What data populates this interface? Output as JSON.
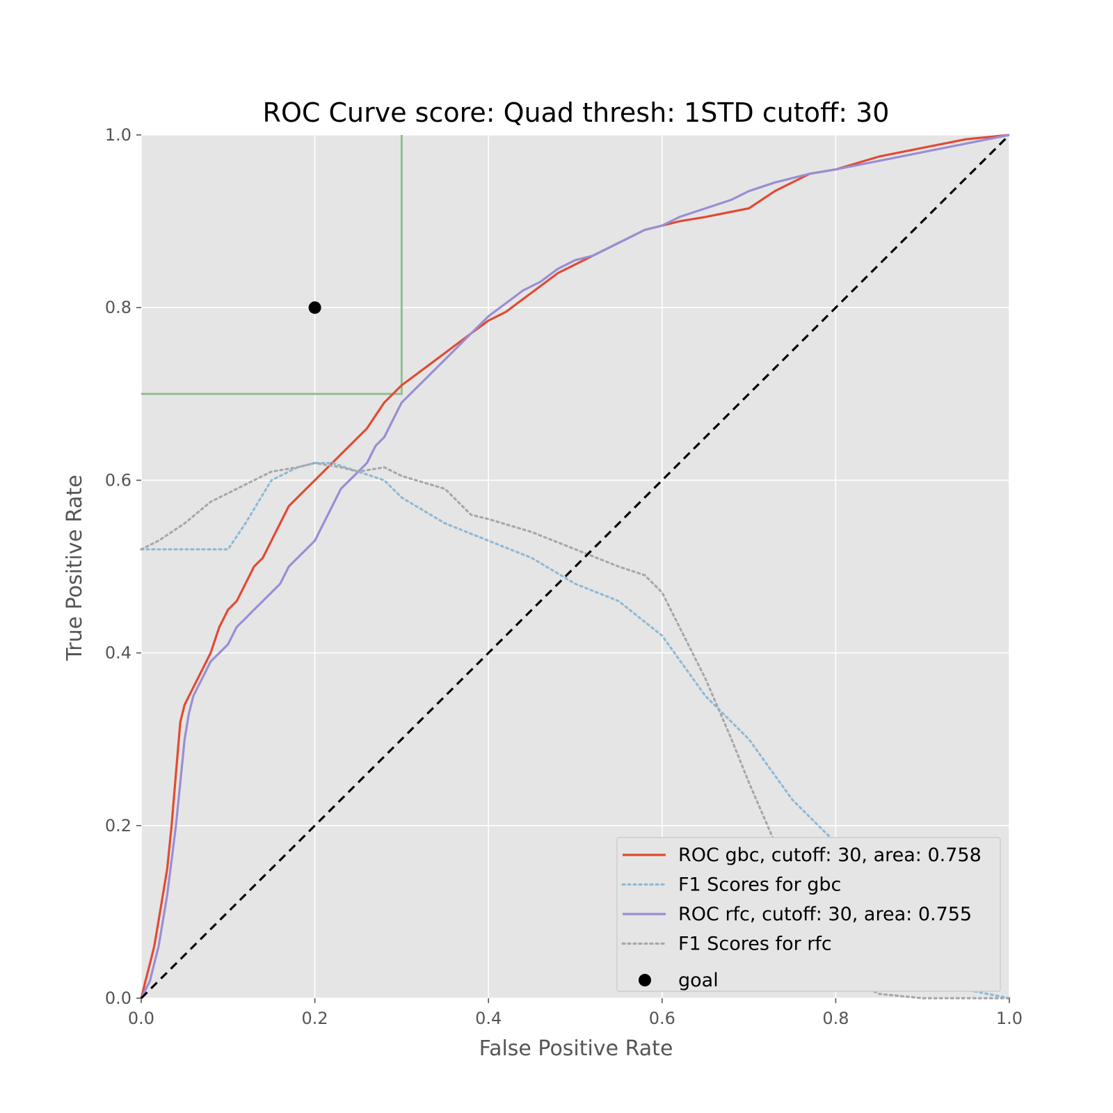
{
  "chart_data": {
    "type": "line",
    "title": "ROC Curve score: Quad thresh: 1STD cutoff: 30",
    "xlabel": "False Positive Rate",
    "ylabel": "True Positive Rate",
    "xlim": [
      0,
      1
    ],
    "ylim": [
      0,
      1
    ],
    "xticks": [
      "0.0",
      "0.2",
      "0.4",
      "0.6",
      "0.8",
      "1.0"
    ],
    "yticks": [
      "0.0",
      "0.2",
      "0.4",
      "0.6",
      "0.8",
      "1.0"
    ],
    "grid": true,
    "legend_position": "lower-right",
    "colors": {
      "background": "#e5e5e5",
      "grid": "#ffffff",
      "gbc": "#e24a33",
      "gbc_f1": "#8ebad9",
      "rfc": "#988ed5",
      "rfc_f1": "#a8a8a8",
      "goal": "#000000",
      "diagonal": "#000000",
      "threshold": "#8fc08f"
    },
    "series": [
      {
        "name": "ROC gbc, cutoff: 30, area: 0.758",
        "style": "solid",
        "color": "#e24a33",
        "x": [
          0,
          0.005,
          0.01,
          0.015,
          0.02,
          0.025,
          0.03,
          0.035,
          0.04,
          0.045,
          0.05,
          0.055,
          0.06,
          0.065,
          0.07,
          0.08,
          0.09,
          0.095,
          0.1,
          0.11,
          0.12,
          0.13,
          0.14,
          0.15,
          0.155,
          0.16,
          0.17,
          0.18,
          0.19,
          0.2,
          0.21,
          0.215,
          0.22,
          0.24,
          0.26,
          0.28,
          0.3,
          0.32,
          0.34,
          0.36,
          0.38,
          0.4,
          0.42,
          0.44,
          0.46,
          0.48,
          0.5,
          0.52,
          0.54,
          0.56,
          0.58,
          0.6,
          0.62,
          0.65,
          0.7,
          0.73,
          0.77,
          0.8,
          0.85,
          0.9,
          0.95,
          1.0
        ],
        "y": [
          0,
          0.02,
          0.04,
          0.06,
          0.09,
          0.12,
          0.15,
          0.2,
          0.26,
          0.32,
          0.34,
          0.35,
          0.36,
          0.37,
          0.38,
          0.4,
          0.43,
          0.44,
          0.45,
          0.46,
          0.48,
          0.5,
          0.51,
          0.53,
          0.54,
          0.55,
          0.57,
          0.58,
          0.59,
          0.6,
          0.61,
          0.615,
          0.62,
          0.64,
          0.66,
          0.69,
          0.71,
          0.725,
          0.74,
          0.755,
          0.77,
          0.785,
          0.795,
          0.81,
          0.825,
          0.84,
          0.85,
          0.86,
          0.87,
          0.88,
          0.89,
          0.895,
          0.9,
          0.905,
          0.915,
          0.935,
          0.955,
          0.96,
          0.975,
          0.985,
          0.995,
          1.0
        ]
      },
      {
        "name": "F1 Scores for gbc",
        "style": "dotted",
        "color": "#8ebad9",
        "x": [
          0,
          0.05,
          0.1,
          0.12,
          0.15,
          0.18,
          0.2,
          0.22,
          0.25,
          0.28,
          0.3,
          0.35,
          0.4,
          0.45,
          0.5,
          0.55,
          0.6,
          0.65,
          0.7,
          0.75,
          0.8,
          0.85,
          0.9,
          0.95,
          1.0
        ],
        "y": [
          0.52,
          0.52,
          0.52,
          0.55,
          0.6,
          0.615,
          0.62,
          0.62,
          0.61,
          0.6,
          0.58,
          0.55,
          0.53,
          0.51,
          0.48,
          0.46,
          0.42,
          0.35,
          0.3,
          0.23,
          0.18,
          0.12,
          0.06,
          0.01,
          0.0
        ]
      },
      {
        "name": "ROC rfc, cutoff: 30, area: 0.755",
        "style": "solid",
        "color": "#988ed5",
        "x": [
          0,
          0.005,
          0.01,
          0.015,
          0.02,
          0.025,
          0.03,
          0.035,
          0.04,
          0.045,
          0.05,
          0.055,
          0.06,
          0.065,
          0.07,
          0.08,
          0.09,
          0.1,
          0.11,
          0.12,
          0.13,
          0.14,
          0.15,
          0.16,
          0.17,
          0.18,
          0.19,
          0.2,
          0.21,
          0.22,
          0.23,
          0.24,
          0.25,
          0.26,
          0.27,
          0.28,
          0.29,
          0.3,
          0.32,
          0.34,
          0.36,
          0.38,
          0.4,
          0.42,
          0.44,
          0.46,
          0.48,
          0.5,
          0.52,
          0.54,
          0.56,
          0.58,
          0.6,
          0.62,
          0.65,
          0.68,
          0.7,
          0.73,
          0.77,
          0.8,
          0.85,
          0.9,
          0.95,
          1.0
        ],
        "y": [
          0,
          0.01,
          0.02,
          0.04,
          0.06,
          0.09,
          0.12,
          0.16,
          0.2,
          0.25,
          0.3,
          0.33,
          0.35,
          0.36,
          0.37,
          0.39,
          0.4,
          0.41,
          0.43,
          0.44,
          0.45,
          0.46,
          0.47,
          0.48,
          0.5,
          0.51,
          0.52,
          0.53,
          0.55,
          0.57,
          0.59,
          0.6,
          0.61,
          0.62,
          0.64,
          0.65,
          0.67,
          0.69,
          0.71,
          0.73,
          0.75,
          0.77,
          0.79,
          0.805,
          0.82,
          0.83,
          0.845,
          0.855,
          0.86,
          0.87,
          0.88,
          0.89,
          0.895,
          0.905,
          0.915,
          0.925,
          0.935,
          0.945,
          0.955,
          0.96,
          0.97,
          0.98,
          0.99,
          1.0
        ]
      },
      {
        "name": "F1 Scores for rfc",
        "style": "dotted",
        "color": "#a8a8a8",
        "x": [
          0,
          0.02,
          0.05,
          0.08,
          0.1,
          0.13,
          0.15,
          0.18,
          0.2,
          0.23,
          0.25,
          0.28,
          0.3,
          0.35,
          0.38,
          0.4,
          0.45,
          0.5,
          0.55,
          0.58,
          0.6,
          0.62,
          0.65,
          0.68,
          0.7,
          0.73,
          0.75,
          0.78,
          0.8,
          0.83,
          0.85,
          0.9,
          0.95,
          1.0
        ],
        "y": [
          0.52,
          0.53,
          0.55,
          0.575,
          0.585,
          0.6,
          0.61,
          0.615,
          0.62,
          0.615,
          0.61,
          0.615,
          0.605,
          0.59,
          0.56,
          0.555,
          0.54,
          0.52,
          0.5,
          0.49,
          0.47,
          0.43,
          0.37,
          0.3,
          0.25,
          0.18,
          0.13,
          0.08,
          0.04,
          0.015,
          0.005,
          0.0,
          0.0,
          0.0
        ]
      },
      {
        "name": "goal",
        "style": "marker",
        "color": "#000000",
        "x": [
          0.2
        ],
        "y": [
          0.8
        ]
      }
    ],
    "reference_lines": {
      "diagonal": {
        "x": [
          0,
          1
        ],
        "y": [
          0,
          1
        ],
        "style": "dashed"
      },
      "threshold": {
        "x": [
          0,
          0.3,
          0.3
        ],
        "y": [
          0.7,
          0.7,
          1.0
        ],
        "style": "solid"
      }
    }
  }
}
